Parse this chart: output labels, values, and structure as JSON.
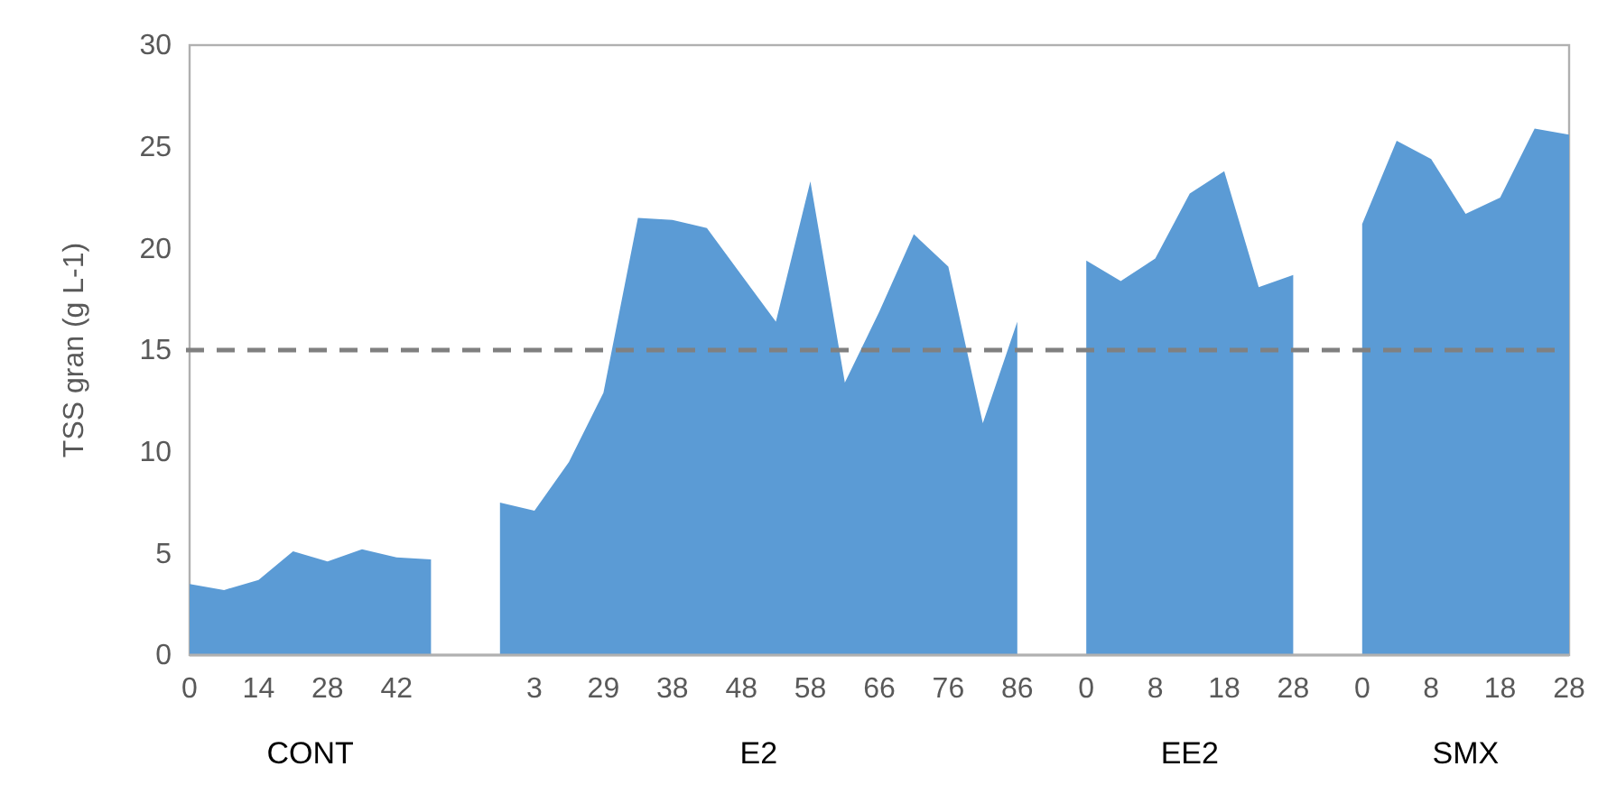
{
  "chart_data": {
    "type": "area",
    "ylabel": "TSS gran (g L-1)",
    "categories": [
      "0",
      null,
      "14",
      null,
      "28",
      null,
      "42",
      null,
      null,
      null,
      "3",
      null,
      "29",
      null,
      "38",
      null,
      "48",
      null,
      "58",
      null,
      "66",
      null,
      "76",
      null,
      "86",
      null,
      "0",
      null,
      "8",
      null,
      "18",
      null,
      "28",
      null,
      "0",
      null,
      "8",
      null,
      "18",
      null,
      "28"
    ],
    "series": [
      {
        "color": "#5b9bd5",
        "values": [
          3.5,
          3.2,
          3.7,
          5.1,
          4.6,
          5.2,
          4.8,
          4.7,
          null,
          7.5,
          7.1,
          9.5,
          12.9,
          21.5,
          21.4,
          21.0,
          18.7,
          16.4,
          23.3,
          13.4,
          16.9,
          20.7,
          19.1,
          11.4,
          16.4,
          null,
          19.4,
          18.4,
          19.5,
          22.7,
          23.8,
          18.1,
          18.7,
          null,
          21.2,
          25.3,
          24.4,
          21.7,
          22.5,
          25.9,
          25.6
        ]
      }
    ],
    "ylim": [
      0,
      30
    ],
    "yticks": [
      0,
      5,
      10,
      15,
      20,
      25,
      30
    ],
    "ref_lines": [
      {
        "axis": "y",
        "value": 15,
        "color": "#808080",
        "line_style": "dashed"
      }
    ],
    "annotations": [
      "CONT",
      "E2",
      "EE2",
      "SMX"
    ]
  }
}
